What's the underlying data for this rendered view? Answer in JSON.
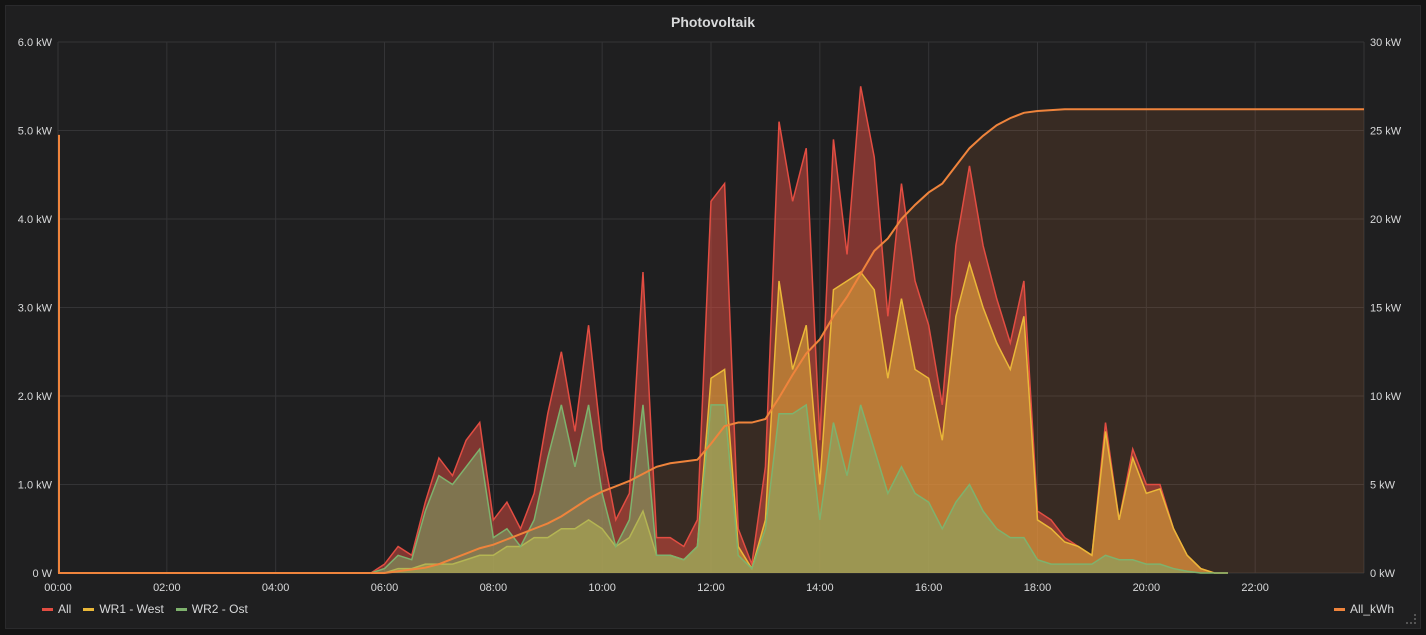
{
  "panel": {
    "title": "Photovoltaik"
  },
  "chart_data": {
    "type": "area",
    "title": "Photovoltaik",
    "grid": true,
    "legend_position": "bottom",
    "x_ticks": [
      "00:00",
      "02:00",
      "04:00",
      "06:00",
      "08:00",
      "10:00",
      "12:00",
      "14:00",
      "16:00",
      "18:00",
      "20:00",
      "22:00"
    ],
    "xlim": [
      "00:00",
      "24:00"
    ],
    "left_axis": {
      "ticks": [
        "0 W",
        "1.0 kW",
        "2.0 kW",
        "3.0 kW",
        "4.0 kW",
        "5.0 kW",
        "6.0 kW"
      ],
      "ylim": [
        0,
        6.0
      ],
      "unit": "kW"
    },
    "right_axis": {
      "ticks": [
        "0 kW",
        "5 kW",
        "10 kW",
        "15 kW",
        "20 kW",
        "25 kW",
        "30 kW"
      ],
      "ylim": [
        0,
        30
      ],
      "unit": "kW"
    },
    "x": [
      "05:45",
      "06:00",
      "06:15",
      "06:30",
      "06:45",
      "07:00",
      "07:15",
      "07:30",
      "07:45",
      "08:00",
      "08:15",
      "08:30",
      "08:45",
      "09:00",
      "09:15",
      "09:30",
      "09:45",
      "10:00",
      "10:15",
      "10:30",
      "10:45",
      "11:00",
      "11:15",
      "11:30",
      "11:45",
      "12:00",
      "12:15",
      "12:30",
      "12:45",
      "13:00",
      "13:15",
      "13:30",
      "13:45",
      "14:00",
      "14:15",
      "14:30",
      "14:45",
      "15:00",
      "15:15",
      "15:30",
      "15:45",
      "16:00",
      "16:15",
      "16:30",
      "16:45",
      "17:00",
      "17:15",
      "17:30",
      "17:45",
      "18:00",
      "18:15",
      "18:30",
      "18:45",
      "19:00",
      "19:15",
      "19:30",
      "19:45",
      "20:00",
      "20:15",
      "20:30",
      "20:45",
      "21:00",
      "21:15",
      "21:30"
    ],
    "series": [
      {
        "name": "All",
        "axis": "left",
        "color": "#e24d42",
        "values": [
          0,
          0.1,
          0.3,
          0.2,
          0.8,
          1.3,
          1.1,
          1.5,
          1.7,
          0.6,
          0.8,
          0.5,
          0.9,
          1.8,
          2.5,
          1.6,
          2.8,
          1.4,
          0.6,
          0.9,
          3.4,
          0.4,
          0.4,
          0.3,
          0.6,
          4.2,
          4.4,
          0.5,
          0.1,
          1.2,
          5.1,
          4.2,
          4.8,
          1.5,
          4.9,
          3.6,
          5.5,
          4.7,
          2.9,
          4.4,
          3.3,
          2.8,
          1.9,
          3.7,
          4.6,
          3.7,
          3.1,
          2.6,
          3.3,
          0.7,
          0.6,
          0.4,
          0.3,
          0.2,
          1.7,
          0.6,
          1.4,
          1.0,
          1.0,
          0.5,
          0.2,
          0.05,
          0,
          0
        ]
      },
      {
        "name": "WR1 - West",
        "axis": "left",
        "color": "#eab839",
        "values": [
          0,
          0,
          0.05,
          0.05,
          0.1,
          0.1,
          0.1,
          0.15,
          0.2,
          0.2,
          0.3,
          0.3,
          0.4,
          0.4,
          0.5,
          0.5,
          0.6,
          0.5,
          0.3,
          0.4,
          0.7,
          0.2,
          0.2,
          0.15,
          0.3,
          2.2,
          2.3,
          0.3,
          0.05,
          0.6,
          3.3,
          2.3,
          2.8,
          1.0,
          3.2,
          3.3,
          3.4,
          3.2,
          2.2,
          3.1,
          2.3,
          2.2,
          1.5,
          2.9,
          3.5,
          3.0,
          2.6,
          2.3,
          2.9,
          0.6,
          0.5,
          0.35,
          0.3,
          0.2,
          1.6,
          0.6,
          1.3,
          0.9,
          0.95,
          0.5,
          0.2,
          0.05,
          0,
          0
        ]
      },
      {
        "name": "WR2 - Ost",
        "axis": "left",
        "color": "#7eb26d",
        "values": [
          0,
          0.05,
          0.2,
          0.15,
          0.7,
          1.1,
          1.0,
          1.2,
          1.4,
          0.4,
          0.5,
          0.3,
          0.6,
          1.3,
          1.9,
          1.2,
          1.9,
          0.9,
          0.3,
          0.6,
          1.9,
          0.2,
          0.2,
          0.15,
          0.3,
          1.9,
          1.9,
          0.2,
          0.05,
          0.5,
          1.8,
          1.8,
          1.9,
          0.6,
          1.7,
          1.1,
          1.9,
          1.4,
          0.9,
          1.2,
          0.9,
          0.8,
          0.5,
          0.8,
          1.0,
          0.7,
          0.5,
          0.4,
          0.4,
          0.15,
          0.1,
          0.1,
          0.1,
          0.1,
          0.2,
          0.15,
          0.15,
          0.1,
          0.1,
          0.05,
          0.02,
          0,
          0,
          0
        ]
      },
      {
        "name": "All_kWh",
        "axis": "right",
        "color": "#ef843c",
        "values": [
          0,
          0,
          0.1,
          0.2,
          0.3,
          0.5,
          0.8,
          1.1,
          1.4,
          1.6,
          1.9,
          2.2,
          2.5,
          2.8,
          3.2,
          3.7,
          4.2,
          4.6,
          4.9,
          5.2,
          5.6,
          6.0,
          6.2,
          6.3,
          6.4,
          7.3,
          8.3,
          8.5,
          8.5,
          8.7,
          9.9,
          11.2,
          12.4,
          13.2,
          14.5,
          15.6,
          16.9,
          18.2,
          18.9,
          20.0,
          20.8,
          21.5,
          22.0,
          23.0,
          24.0,
          24.7,
          25.3,
          25.7,
          26.0,
          26.1,
          26.15,
          26.2,
          26.2,
          26.2,
          26.2,
          26.2,
          26.2,
          26.2,
          26.2,
          26.2,
          26.2,
          26.2,
          26.2,
          26.2
        ]
      }
    ],
    "all_kwh_tail": {
      "from": "21:30",
      "to": "24:00",
      "value": 26.2
    }
  },
  "legend": {
    "left": [
      {
        "label": "All",
        "color": "#e24d42"
      },
      {
        "label": "WR1 - West",
        "color": "#eab839"
      },
      {
        "label": "WR2 - Ost",
        "color": "#7eb26d"
      }
    ],
    "right": [
      {
        "label": "All_kWh",
        "color": "#ef843c"
      }
    ]
  }
}
